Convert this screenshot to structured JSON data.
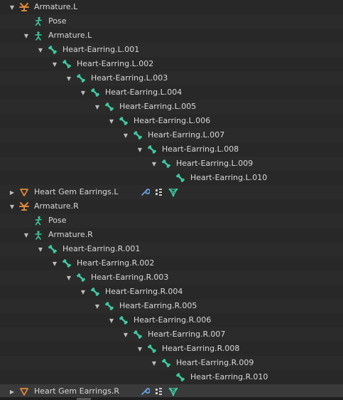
{
  "outliner": {
    "rows": [
      {
        "label": "Armature.L",
        "type": "armature-object",
        "level": 0,
        "expanded": true
      },
      {
        "label": "Pose",
        "type": "pose",
        "level": 1,
        "expanded": null
      },
      {
        "label": "Armature.L",
        "type": "armature-data",
        "level": 1,
        "expanded": true
      },
      {
        "label": "Heart-Earring.L.001",
        "type": "bone",
        "level": 2,
        "expanded": true
      },
      {
        "label": "Heart-Earring.L.002",
        "type": "bone",
        "level": 3,
        "expanded": true
      },
      {
        "label": "Heart-Earring.L.003",
        "type": "bone",
        "level": 4,
        "expanded": true
      },
      {
        "label": "Heart-Earring.L.004",
        "type": "bone",
        "level": 5,
        "expanded": true
      },
      {
        "label": "Heart-Earring.L.005",
        "type": "bone",
        "level": 6,
        "expanded": true
      },
      {
        "label": "Heart-Earring.L.006",
        "type": "bone",
        "level": 7,
        "expanded": true
      },
      {
        "label": "Heart-Earring.L.007",
        "type": "bone",
        "level": 8,
        "expanded": true
      },
      {
        "label": "Heart-Earring.L.008",
        "type": "bone",
        "level": 9,
        "expanded": true
      },
      {
        "label": "Heart-Earring.L.009",
        "type": "bone",
        "level": 10,
        "expanded": true
      },
      {
        "label": "Heart-Earring.L.010",
        "type": "bone",
        "level": 11,
        "expanded": null
      },
      {
        "label": "Heart Gem Earrings.L",
        "type": "mesh-object",
        "level": 0,
        "expanded": false,
        "extras": [
          "wrench-icon",
          "vertex-groups-icon",
          "mesh-data-icon"
        ]
      },
      {
        "label": "Armature.R",
        "type": "armature-object",
        "level": 0,
        "expanded": true
      },
      {
        "label": "Pose",
        "type": "pose",
        "level": 1,
        "expanded": null
      },
      {
        "label": "Armature.R",
        "type": "armature-data",
        "level": 1,
        "expanded": true
      },
      {
        "label": "Heart-Earring.R.001",
        "type": "bone",
        "level": 2,
        "expanded": true
      },
      {
        "label": "Heart-Earring.R.002",
        "type": "bone",
        "level": 3,
        "expanded": true
      },
      {
        "label": "Heart-Earring.R.003",
        "type": "bone",
        "level": 4,
        "expanded": true
      },
      {
        "label": "Heart-Earring.R.004",
        "type": "bone",
        "level": 5,
        "expanded": true
      },
      {
        "label": "Heart-Earring.R.005",
        "type": "bone",
        "level": 6,
        "expanded": true
      },
      {
        "label": "Heart-Earring.R.006",
        "type": "bone",
        "level": 7,
        "expanded": true
      },
      {
        "label": "Heart-Earring.R.007",
        "type": "bone",
        "level": 8,
        "expanded": true
      },
      {
        "label": "Heart-Earring.R.008",
        "type": "bone",
        "level": 9,
        "expanded": true
      },
      {
        "label": "Heart-Earring.R.009",
        "type": "bone",
        "level": 10,
        "expanded": true
      },
      {
        "label": "Heart-Earring.R.010",
        "type": "bone",
        "level": 11,
        "expanded": null
      },
      {
        "label": "Heart Gem Earrings.R",
        "type": "mesh-object",
        "level": 0,
        "expanded": false,
        "selected": true,
        "extras": [
          "wrench-icon",
          "vertex-groups-icon",
          "mesh-data-icon"
        ]
      }
    ]
  },
  "colors": {
    "armature": "#e0883a",
    "bone": "#3ec9a0",
    "pose": "#3ec9a0",
    "mesh": "#e0883a",
    "modifier": "#6aa0e0",
    "mesh_data": "#3ec9a0",
    "vertex_groups": "#cccccc"
  }
}
